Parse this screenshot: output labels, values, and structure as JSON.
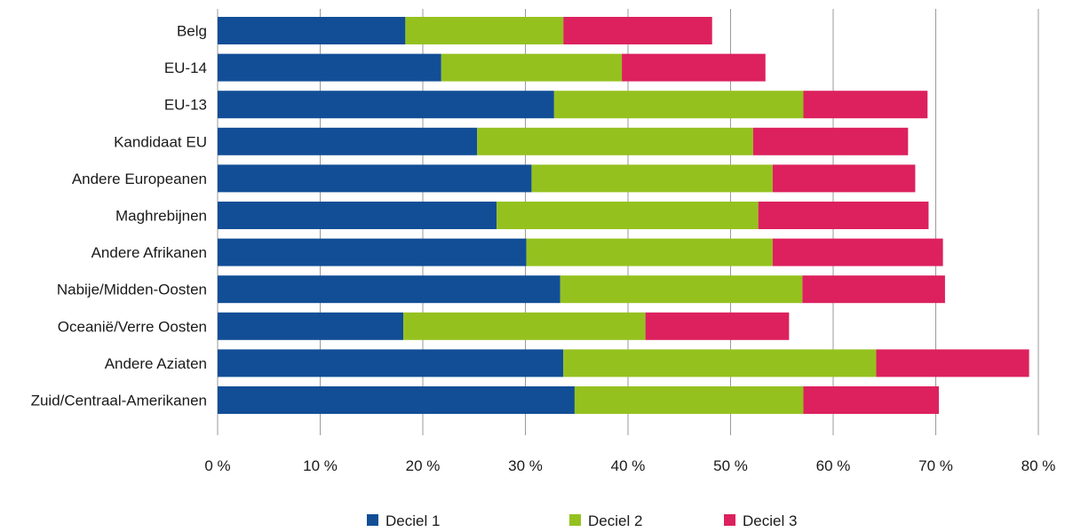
{
  "chart_data": {
    "type": "bar",
    "orientation": "horizontal",
    "stacked": true,
    "categories": [
      "Belg",
      "EU-14",
      "EU-13",
      "Kandidaat EU",
      "Andere Europeanen",
      "Maghrebijnen",
      "Andere Afrikanen",
      "Nabije/Midden-Oosten",
      "Oceanië/Verre Oosten",
      "Andere Aziaten",
      "Zuid/Centraal-Amerikanen"
    ],
    "series": [
      {
        "name": "Deciel 1",
        "color": "#124e96",
        "values": [
          18.3,
          21.8,
          32.8,
          25.3,
          30.6,
          27.2,
          30.1,
          33.4,
          18.1,
          33.7,
          34.8
        ]
      },
      {
        "name": "Deciel 2",
        "color": "#95c11f",
        "values": [
          15.4,
          17.6,
          24.3,
          26.9,
          23.5,
          25.5,
          24.0,
          23.6,
          23.6,
          30.5,
          22.3
        ]
      },
      {
        "name": "Deciel 3",
        "color": "#dc215e",
        "values": [
          14.5,
          14.0,
          12.1,
          15.1,
          13.9,
          16.6,
          16.6,
          13.9,
          14.0,
          14.9,
          13.2
        ]
      }
    ],
    "x_ticks": [
      "0 %",
      "10 %",
      "20 %",
      "30 %",
      "40 %",
      "50 %",
      "60 %",
      "70 %",
      "80 %"
    ],
    "xlim": [
      0,
      80
    ],
    "grid": true,
    "legend_position": "bottom",
    "title": "",
    "xlabel": "",
    "ylabel": ""
  }
}
